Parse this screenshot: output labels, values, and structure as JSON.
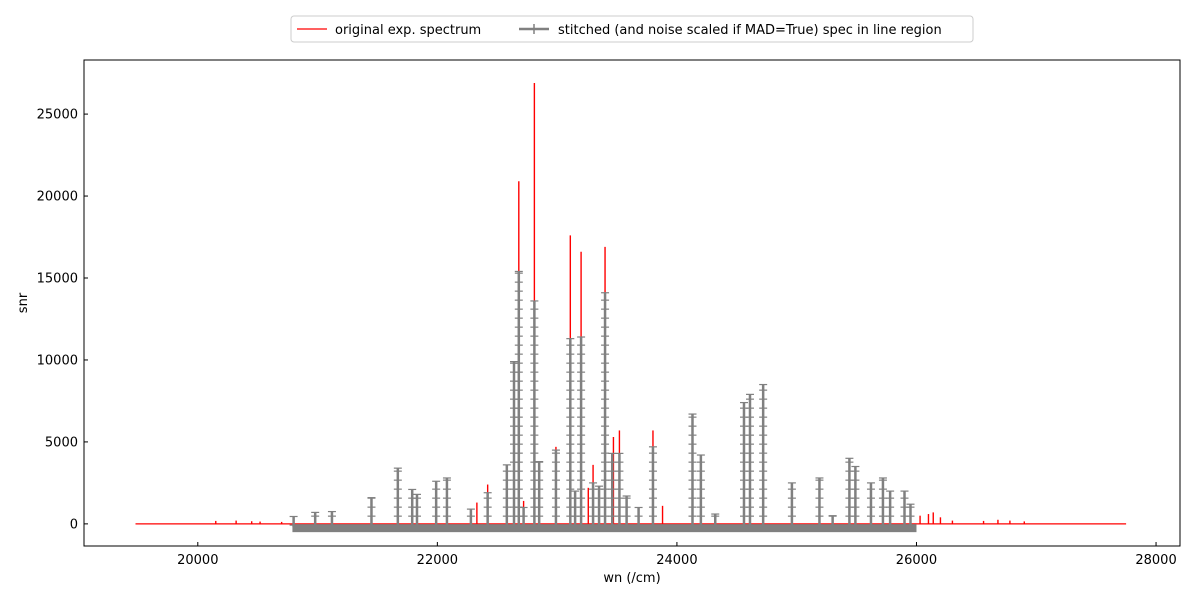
{
  "chart_data": {
    "type": "line",
    "xlabel": "wn (/cm)",
    "ylabel": "snr",
    "xlim": [
      19050,
      28200
    ],
    "ylim": [
      -1350,
      28300
    ],
    "xticks": [
      20000,
      22000,
      24000,
      26000,
      28000
    ],
    "yticks": [
      0,
      5000,
      10000,
      15000,
      20000,
      25000
    ],
    "legend_position": "top-center-outside",
    "grid": false,
    "series": [
      {
        "name": "original exp. spectrum",
        "color": "#ff0000",
        "marker": "none",
        "x_range": [
          19480,
          27750
        ],
        "baseline": 0,
        "peaks": [
          {
            "x": 20150,
            "y": 180
          },
          {
            "x": 20320,
            "y": 200
          },
          {
            "x": 20450,
            "y": 160
          },
          {
            "x": 20520,
            "y": 140
          },
          {
            "x": 20700,
            "y": 120
          },
          {
            "x": 22330,
            "y": 1300
          },
          {
            "x": 22420,
            "y": 2400
          },
          {
            "x": 22680,
            "y": 20900
          },
          {
            "x": 22720,
            "y": 1400
          },
          {
            "x": 22810,
            "y": 26900
          },
          {
            "x": 22990,
            "y": 4700
          },
          {
            "x": 23110,
            "y": 17600
          },
          {
            "x": 23200,
            "y": 16600
          },
          {
            "x": 23260,
            "y": 2200
          },
          {
            "x": 23300,
            "y": 3600
          },
          {
            "x": 23400,
            "y": 16900
          },
          {
            "x": 23470,
            "y": 5300
          },
          {
            "x": 23520,
            "y": 5700
          },
          {
            "x": 23800,
            "y": 5700
          },
          {
            "x": 23880,
            "y": 1100
          },
          {
            "x": 26030,
            "y": 500
          },
          {
            "x": 26100,
            "y": 600
          },
          {
            "x": 26140,
            "y": 700
          },
          {
            "x": 26200,
            "y": 400
          },
          {
            "x": 26300,
            "y": 200
          },
          {
            "x": 26560,
            "y": 180
          },
          {
            "x": 26680,
            "y": 250
          },
          {
            "x": 26780,
            "y": 200
          },
          {
            "x": 26900,
            "y": 150
          }
        ]
      },
      {
        "name": "stitched (and noise scaled if MAD=True) spec in line region",
        "color": "#808080",
        "marker": "+",
        "x_range": [
          20790,
          26000
        ],
        "baseline": -200,
        "peaks": [
          {
            "x": 20800,
            "y": 450
          },
          {
            "x": 20980,
            "y": 700
          },
          {
            "x": 21120,
            "y": 750
          },
          {
            "x": 21450,
            "y": 1600
          },
          {
            "x": 21670,
            "y": 3400
          },
          {
            "x": 21790,
            "y": 2100
          },
          {
            "x": 21830,
            "y": 1800
          },
          {
            "x": 21990,
            "y": 2600
          },
          {
            "x": 22080,
            "y": 2800
          },
          {
            "x": 22280,
            "y": 900
          },
          {
            "x": 22420,
            "y": 1900
          },
          {
            "x": 22580,
            "y": 3600
          },
          {
            "x": 22640,
            "y": 9900
          },
          {
            "x": 22680,
            "y": 15400
          },
          {
            "x": 22720,
            "y": 1000
          },
          {
            "x": 22810,
            "y": 13600
          },
          {
            "x": 22850,
            "y": 3800
          },
          {
            "x": 22990,
            "y": 4500
          },
          {
            "x": 23110,
            "y": 11300
          },
          {
            "x": 23200,
            "y": 11400
          },
          {
            "x": 23150,
            "y": 2000
          },
          {
            "x": 23300,
            "y": 2500
          },
          {
            "x": 23350,
            "y": 2300
          },
          {
            "x": 23400,
            "y": 14100
          },
          {
            "x": 23460,
            "y": 4300
          },
          {
            "x": 23520,
            "y": 4300
          },
          {
            "x": 23580,
            "y": 1700
          },
          {
            "x": 23680,
            "y": 1000
          },
          {
            "x": 23800,
            "y": 4700
          },
          {
            "x": 24130,
            "y": 6700
          },
          {
            "x": 24200,
            "y": 4200
          },
          {
            "x": 24320,
            "y": 600
          },
          {
            "x": 24560,
            "y": 7400
          },
          {
            "x": 24610,
            "y": 7900
          },
          {
            "x": 24720,
            "y": 8500
          },
          {
            "x": 24960,
            "y": 2500
          },
          {
            "x": 25190,
            "y": 2800
          },
          {
            "x": 25300,
            "y": 500
          },
          {
            "x": 25440,
            "y": 4000
          },
          {
            "x": 25490,
            "y": 3500
          },
          {
            "x": 25620,
            "y": 2500
          },
          {
            "x": 25720,
            "y": 2800
          },
          {
            "x": 25780,
            "y": 2000
          },
          {
            "x": 25900,
            "y": 2000
          },
          {
            "x": 25950,
            "y": 1200
          }
        ]
      }
    ]
  }
}
